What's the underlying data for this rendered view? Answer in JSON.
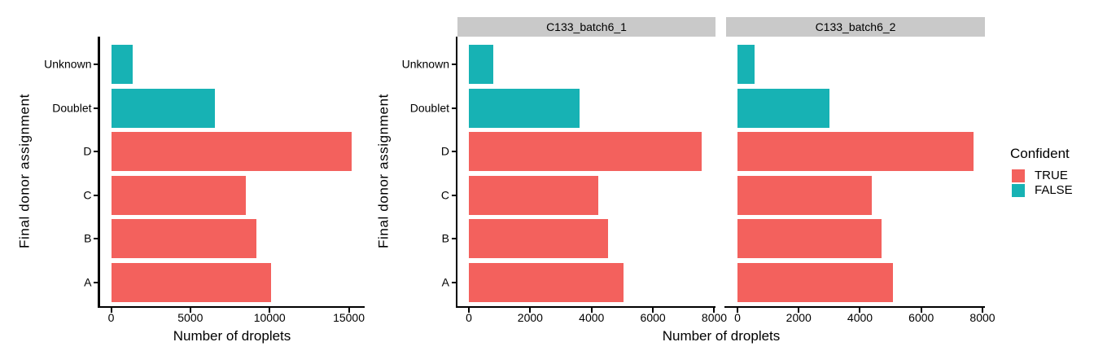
{
  "chart_data": {
    "type": "bar",
    "orientation": "horizontal",
    "xlabel": "Number of droplets",
    "ylabel": "Final donor assignment",
    "grid": false,
    "categories_top_to_bottom": [
      "Unknown",
      "Doublet",
      "D",
      "C",
      "B",
      "A"
    ],
    "category_legend_key": [
      "FALSE",
      "FALSE",
      "TRUE",
      "TRUE",
      "TRUE",
      "TRUE"
    ],
    "colors": {
      "TRUE": "#F3615D",
      "FALSE": "#17B2B4"
    },
    "strip_bg": "#C9C9C9",
    "axis_color": "#000000",
    "legend": {
      "title": "Confident",
      "position": "right",
      "entries": [
        {
          "label": "TRUE",
          "color": "#F3615D"
        },
        {
          "label": "FALSE",
          "color": "#17B2B4"
        }
      ]
    },
    "panels": [
      {
        "facet_title": null,
        "xticks": [
          0,
          5000,
          10000,
          15000
        ],
        "xlim": [
          0,
          16000
        ],
        "values": [
          1350,
          6550,
          15200,
          8500,
          9150,
          10080
        ]
      },
      {
        "facet_title": "C133_batch6_1",
        "xticks": [
          0,
          2000,
          4000,
          6000,
          8000
        ],
        "xlim": [
          0,
          8040
        ],
        "values": [
          800,
          3620,
          7590,
          4210,
          4540,
          5040
        ]
      },
      {
        "facet_title": "C133_batch6_2",
        "xticks": [
          0,
          2000,
          4000,
          6000,
          8000
        ],
        "xlim": [
          0,
          8080
        ],
        "values": [
          560,
          3000,
          7720,
          4380,
          4710,
          5080
        ]
      }
    ]
  }
}
